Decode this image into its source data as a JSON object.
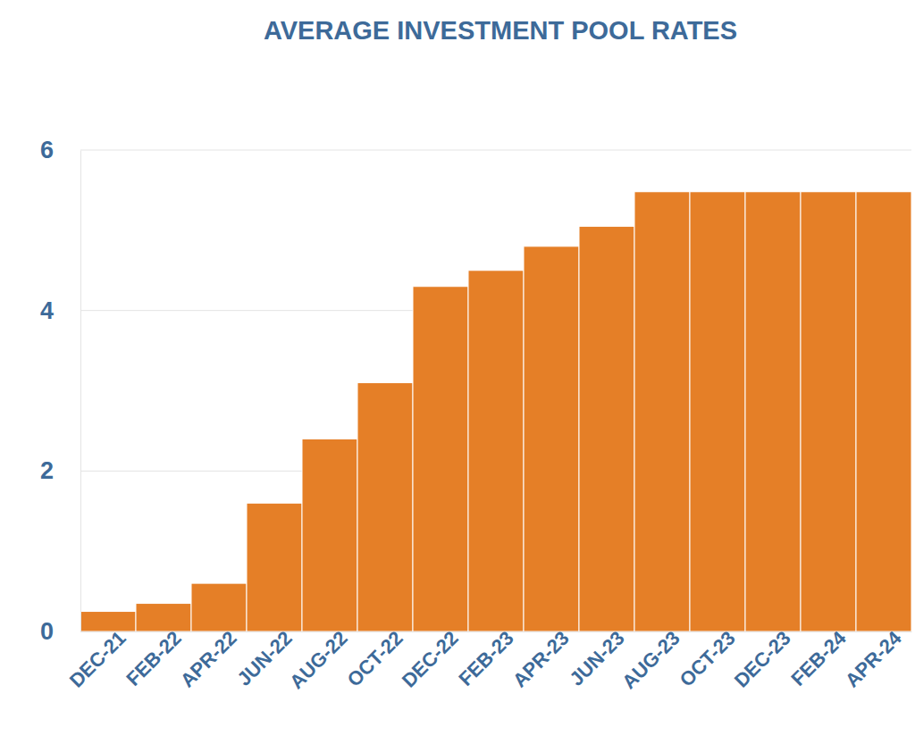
{
  "chart_data": {
    "type": "bar",
    "title": "AVERAGE INVESTMENT POOL RATES",
    "categories": [
      "DEC-21",
      "FEB-22",
      "APR-22",
      "JUN-22",
      "AUG-22",
      "OCT-22",
      "DEC-22",
      "FEB-23",
      "APR-23",
      "JUN-23",
      "AUG-23",
      "OCT-23",
      "DEC-23",
      "FEB-24",
      "APR-24"
    ],
    "values": [
      0.25,
      0.35,
      0.6,
      1.6,
      2.4,
      3.1,
      4.3,
      4.5,
      4.8,
      5.05,
      5.48,
      5.48,
      5.48,
      5.48,
      5.48
    ],
    "color": "#e57f27",
    "ylim": [
      0,
      6
    ],
    "yticks": [
      0,
      2,
      4,
      6
    ],
    "grid": true
  }
}
